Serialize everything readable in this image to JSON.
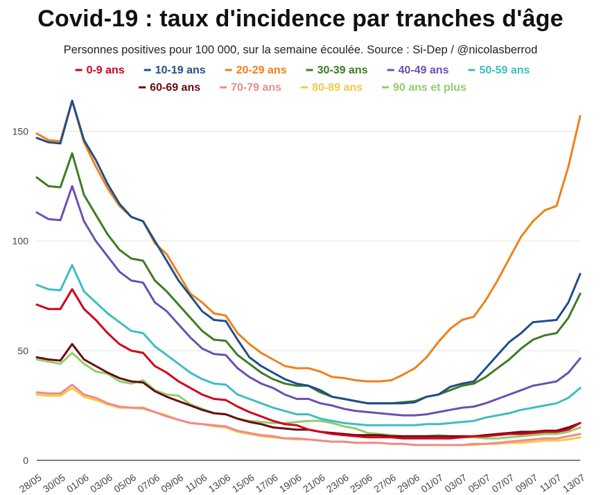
{
  "header": {
    "title": "Covid-19 : taux d'incidence par tranches d'âge",
    "subtitle": "Personnes positives pour 100 000, sur la semaine écoulée. Source : Si-Dep / @nicolasberrod"
  },
  "chart_data": {
    "type": "line",
    "title": "Covid-19 : taux d'incidence par tranches d'âge",
    "subtitle": "Personnes positives pour 100 000, sur la semaine écoulée. Source : Si-Dep / @nicolasberrod",
    "xlabel": "",
    "ylabel": "",
    "ylim": [
      0,
      165
    ],
    "yticks": [
      0,
      50,
      100,
      150
    ],
    "grid": "horizontal",
    "legend_position": "top",
    "x_tick_labels": [
      "28/05",
      "30/05",
      "01/06",
      "03/06",
      "05/06",
      "07/06",
      "09/06",
      "11/06",
      "13/06",
      "15/06",
      "17/06",
      "19/06",
      "21/06",
      "23/06",
      "25/06",
      "27/06",
      "29/06",
      "01/07",
      "03/07",
      "05/07",
      "07/07",
      "09/07",
      "11/07",
      "13/07"
    ],
    "x": [
      "28/05",
      "29/05",
      "30/05",
      "31/05",
      "01/06",
      "02/06",
      "03/06",
      "04/06",
      "05/06",
      "06/06",
      "07/06",
      "08/06",
      "09/06",
      "10/06",
      "11/06",
      "12/06",
      "13/06",
      "14/06",
      "15/06",
      "16/06",
      "17/06",
      "18/06",
      "19/06",
      "20/06",
      "21/06",
      "22/06",
      "23/06",
      "24/06",
      "25/06",
      "26/06",
      "27/06",
      "28/06",
      "29/06",
      "30/06",
      "01/07",
      "02/07",
      "03/07",
      "04/07",
      "05/07",
      "06/07",
      "07/07",
      "08/07",
      "09/07",
      "10/07",
      "11/07",
      "12/07",
      "13/07"
    ],
    "series": [
      {
        "name": "0-9 ans",
        "color": "#d0021b",
        "values": [
          71,
          69,
          69,
          78,
          69,
          64,
          58,
          53,
          50,
          49,
          43,
          40,
          36,
          33,
          30,
          28,
          27.5,
          24.5,
          22,
          20,
          18,
          16.5,
          16,
          14,
          13,
          12,
          11.5,
          11,
          10.5,
          10.5,
          10.5,
          10,
          10,
          10,
          10,
          10,
          10.5,
          11,
          11,
          11.5,
          12,
          12,
          12.5,
          13,
          13,
          14,
          17
        ]
      },
      {
        "name": "10-19 ans",
        "color": "#1f4e8c",
        "values": [
          147,
          145,
          144.5,
          164,
          146,
          137,
          126,
          117,
          111,
          109,
          100,
          91,
          82,
          75,
          68,
          64,
          63.5,
          55,
          47,
          43,
          40,
          37,
          35,
          34,
          32,
          29,
          28,
          27,
          26,
          26,
          26,
          26,
          26.5,
          29,
          30,
          33.5,
          35,
          36,
          42,
          48,
          54,
          58,
          63,
          63.5,
          64,
          72,
          85
        ]
      },
      {
        "name": "20-29 ans",
        "color": "#f0801a",
        "values": [
          149,
          146,
          145.5,
          164,
          145,
          134,
          124,
          116,
          111,
          109,
          99,
          94,
          85,
          76,
          72,
          67,
          66,
          58,
          53,
          49,
          46,
          43,
          42,
          42,
          40.5,
          38,
          37.5,
          36.5,
          36,
          36,
          36.5,
          39,
          42,
          47,
          54,
          60,
          64,
          65.5,
          73,
          82,
          92,
          102,
          109,
          114,
          116,
          134,
          157
        ]
      },
      {
        "name": "30-39 ans",
        "color": "#3e7b22",
        "values": [
          129,
          125,
          124.5,
          140,
          121,
          112,
          103,
          96,
          92,
          91,
          82,
          77,
          71,
          65,
          59,
          55,
          54.5,
          48,
          44,
          40,
          37,
          35,
          34,
          34,
          31,
          29,
          28,
          27,
          26,
          26,
          26,
          26.5,
          27,
          29,
          30,
          32,
          34,
          35,
          38,
          42,
          46,
          51,
          55,
          57,
          58,
          65,
          76
        ]
      },
      {
        "name": "40-49 ans",
        "color": "#6a4fb1",
        "values": [
          113,
          110,
          109.5,
          125,
          109,
          100,
          93,
          86,
          82,
          81,
          72,
          68,
          62,
          56,
          51,
          48.5,
          48,
          42,
          38,
          35,
          33,
          30,
          28,
          28,
          26,
          25,
          23.5,
          22.5,
          22,
          21.5,
          21,
          20.5,
          20.5,
          21,
          22,
          23,
          24,
          24.5,
          26,
          28,
          30,
          32,
          34,
          35,
          36,
          40,
          46.5
        ]
      },
      {
        "name": "50-59 ans",
        "color": "#3fbcc4",
        "values": [
          80,
          78,
          77.5,
          89,
          77,
          72,
          67,
          63,
          59,
          58,
          52,
          48,
          44,
          40,
          37,
          35,
          34.5,
          30,
          28,
          26,
          24,
          22.5,
          21,
          21,
          19,
          18,
          17,
          16.5,
          16,
          16,
          16,
          16,
          16,
          16.5,
          16.5,
          17,
          17.5,
          18,
          19.5,
          20.5,
          21.5,
          23,
          24,
          25,
          26,
          28.5,
          33
        ]
      },
      {
        "name": "60-69 ans",
        "color": "#6b0a10",
        "values": [
          47,
          46,
          45.5,
          53,
          46,
          43,
          40,
          37.5,
          36,
          35.5,
          31.5,
          29,
          27,
          25,
          23,
          21.5,
          21,
          19,
          17.5,
          16.5,
          15,
          14.5,
          14,
          14,
          13,
          12.5,
          12,
          11.5,
          11.5,
          11.5,
          11,
          11,
          11,
          11,
          11,
          11,
          11,
          11,
          11.5,
          12,
          12.5,
          13,
          13,
          13.5,
          13.5,
          15,
          17
        ]
      },
      {
        "name": "70-79 ans",
        "color": "#f08a8a",
        "values": [
          31,
          30.5,
          30.5,
          34.5,
          30,
          28.5,
          26,
          24.5,
          24,
          24,
          22,
          20,
          18.5,
          17,
          16.5,
          16,
          15.5,
          13.5,
          12.5,
          11.5,
          11,
          10,
          10,
          9.5,
          9,
          8.5,
          8.5,
          8,
          8,
          8,
          7.5,
          7.5,
          7,
          7,
          7,
          7,
          7,
          7.5,
          7.5,
          8,
          8.5,
          9,
          9.5,
          10,
          10,
          11,
          12
        ]
      },
      {
        "name": "80-89 ans",
        "color": "#f5c945",
        "values": [
          30,
          29.5,
          29.5,
          33,
          29,
          27.5,
          25.5,
          24,
          24,
          23.5,
          22,
          20.5,
          18.5,
          17,
          16.5,
          15.5,
          15,
          13,
          12,
          11,
          10.5,
          10,
          9.5,
          9.5,
          9,
          8.5,
          8.5,
          8,
          8,
          8,
          7.5,
          7.5,
          7,
          7,
          7,
          7,
          7,
          7,
          7.5,
          7.5,
          8,
          8,
          8.5,
          9,
          9,
          9.5,
          10.5
        ]
      },
      {
        "name": "90 ans et plus",
        "color": "#8fce6a",
        "values": [
          46,
          45,
          44,
          49,
          44,
          40.5,
          39.5,
          36,
          35,
          36.5,
          32,
          30,
          29.5,
          25.5,
          23.5,
          21.5,
          21,
          19,
          18,
          17.5,
          17,
          17,
          17.5,
          18,
          18,
          17,
          15.5,
          14.5,
          12.5,
          12,
          11.5,
          11,
          11,
          11,
          11.5,
          11,
          10.5,
          10.5,
          10,
          10,
          10.5,
          11,
          11.5,
          12,
          12,
          13,
          15
        ]
      }
    ]
  }
}
